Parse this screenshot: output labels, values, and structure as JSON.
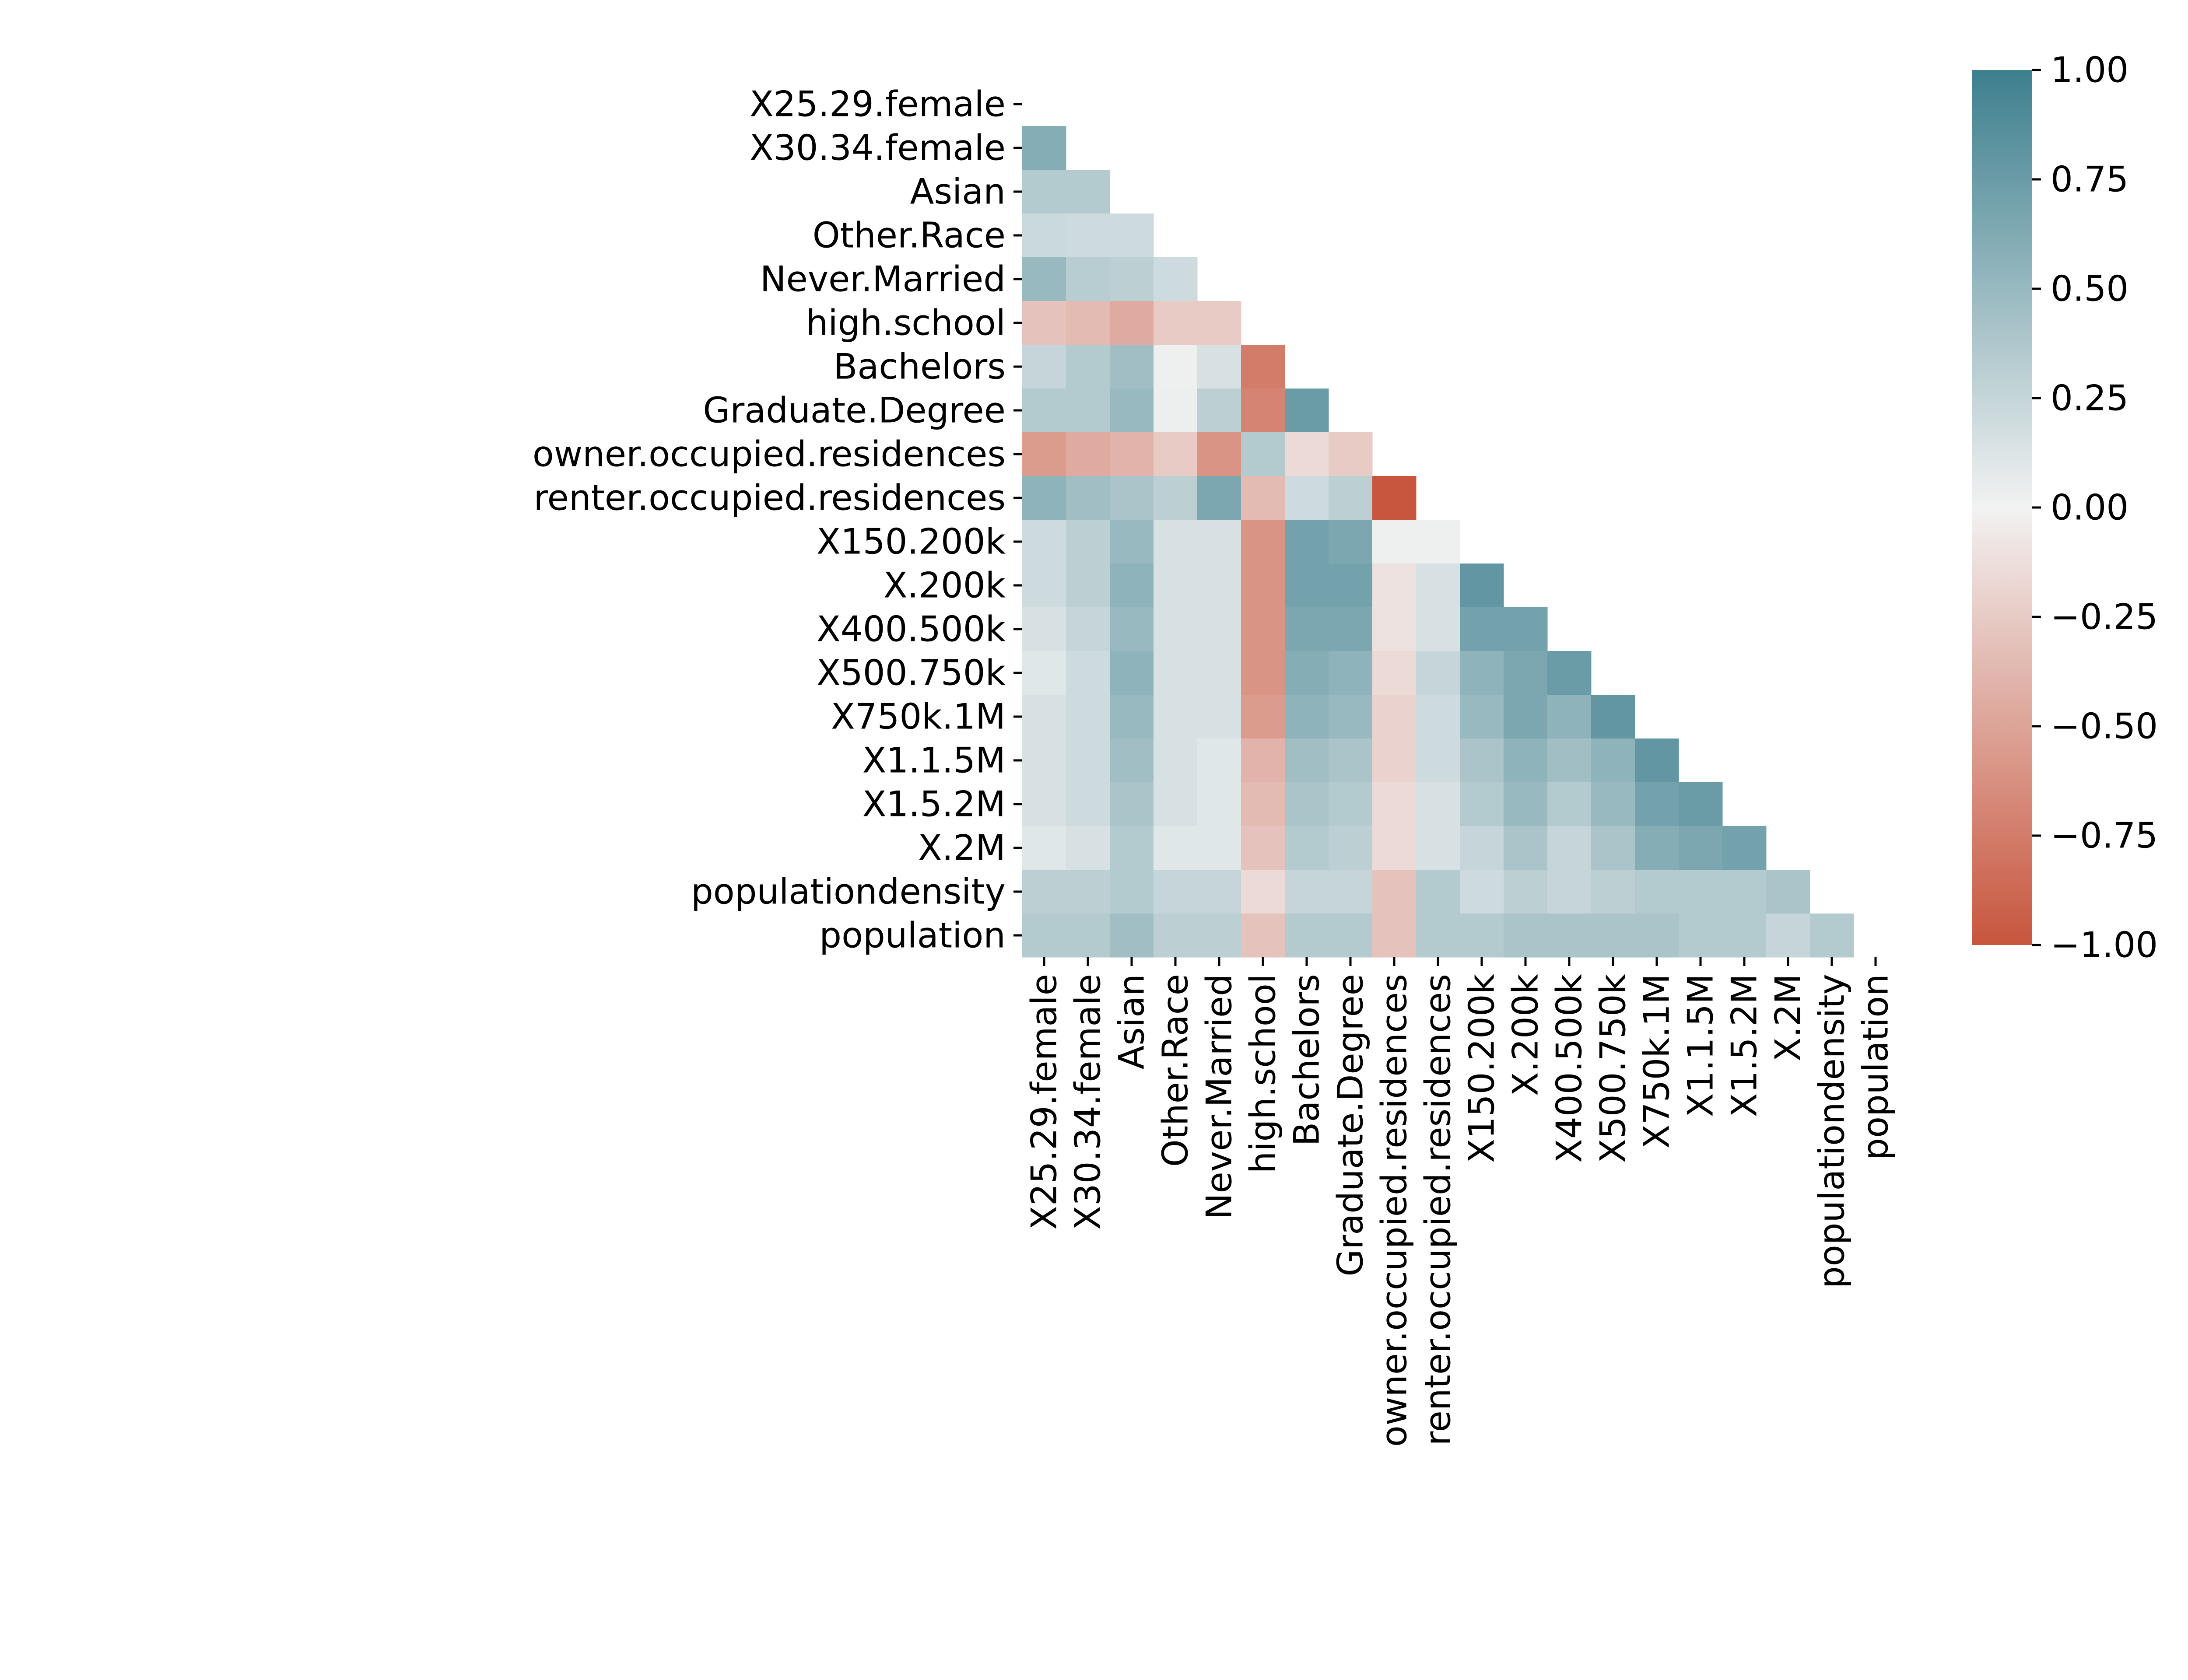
{
  "chart_data": {
    "type": "heatmap",
    "title": "",
    "xlabel": "",
    "ylabel": "",
    "mask": "upper-triangle",
    "row_labels": [
      "X25.29.female",
      "X30.34.female",
      "Asian",
      "Other.Race",
      "Never.Married",
      "high.school",
      "Bachelors",
      "Graduate.Degree",
      "owner.occupied.residences",
      "renter.occupied.residences",
      "X150.200k",
      "X.200k",
      "X400.500k",
      "X500.750k",
      "X750k.1M",
      "X1.1.5M",
      "X1.5.2M",
      "X.2M",
      "populationdensity",
      "population"
    ],
    "col_labels": [
      "X25.29.female",
      "X30.34.female",
      "Asian",
      "Other.Race",
      "Never.Married",
      "high.school",
      "Bachelors",
      "Graduate.Degree",
      "owner.occupied.residences",
      "renter.occupied.residences",
      "X150.200k",
      "X.200k",
      "X400.500k",
      "X500.750k",
      "X750k.1M",
      "X1.1.5M",
      "X1.5.2M",
      "X.2M",
      "populationdensity",
      "population"
    ],
    "values": [
      [],
      [
        0.6
      ],
      [
        0.35,
        0.35
      ],
      [
        0.22,
        0.2,
        0.2
      ],
      [
        0.5,
        0.32,
        0.3,
        0.2
      ],
      [
        -0.3,
        -0.35,
        -0.45,
        -0.25,
        -0.25
      ],
      [
        0.25,
        0.35,
        0.45,
        0.02,
        0.15,
        -0.75
      ],
      [
        0.35,
        0.35,
        0.5,
        0.03,
        0.3,
        -0.7,
        0.75
      ],
      [
        -0.55,
        -0.45,
        -0.4,
        -0.25,
        -0.6,
        0.35,
        -0.15,
        -0.25
      ],
      [
        0.55,
        0.45,
        0.4,
        0.3,
        0.65,
        -0.35,
        0.2,
        0.3,
        -1.0
      ],
      [
        0.2,
        0.3,
        0.5,
        0.15,
        0.15,
        -0.6,
        0.7,
        0.65,
        0.02,
        0.02
      ],
      [
        0.2,
        0.3,
        0.55,
        0.15,
        0.15,
        -0.6,
        0.7,
        0.7,
        -0.1,
        0.15,
        0.8
      ],
      [
        0.15,
        0.25,
        0.5,
        0.15,
        0.15,
        -0.6,
        0.65,
        0.65,
        -0.1,
        0.15,
        0.7,
        0.7
      ],
      [
        0.1,
        0.2,
        0.55,
        0.15,
        0.15,
        -0.6,
        0.6,
        0.55,
        -0.15,
        0.25,
        0.55,
        0.65,
        0.75
      ],
      [
        0.15,
        0.2,
        0.5,
        0.15,
        0.15,
        -0.55,
        0.55,
        0.5,
        -0.2,
        0.2,
        0.5,
        0.65,
        0.55,
        0.8
      ],
      [
        0.15,
        0.2,
        0.45,
        0.15,
        0.1,
        -0.4,
        0.45,
        0.4,
        -0.2,
        0.2,
        0.4,
        0.55,
        0.45,
        0.55,
        0.8
      ],
      [
        0.15,
        0.2,
        0.4,
        0.15,
        0.1,
        -0.35,
        0.4,
        0.35,
        -0.15,
        0.15,
        0.35,
        0.5,
        0.35,
        0.5,
        0.7,
        0.75
      ],
      [
        0.1,
        0.15,
        0.35,
        0.1,
        0.1,
        -0.3,
        0.35,
        0.3,
        -0.15,
        0.15,
        0.25,
        0.4,
        0.25,
        0.4,
        0.6,
        0.65,
        0.7
      ],
      [
        0.3,
        0.3,
        0.35,
        0.25,
        0.25,
        -0.15,
        0.25,
        0.25,
        -0.3,
        0.35,
        0.2,
        0.3,
        0.25,
        0.3,
        0.35,
        0.35,
        0.35,
        0.4
      ],
      [
        0.35,
        0.35,
        0.45,
        0.3,
        0.3,
        -0.3,
        0.35,
        0.35,
        -0.3,
        0.35,
        0.35,
        0.4,
        0.4,
        0.4,
        0.4,
        0.35,
        0.35,
        0.25,
        0.35
      ]
    ],
    "colorbar": {
      "min": -1.0,
      "max": 1.0,
      "ticks": [
        "1.00",
        "0.75",
        "0.50",
        "0.25",
        "0.00",
        "−0.25",
        "−0.50",
        "−0.75",
        "−1.00"
      ],
      "tick_values": [
        1.0,
        0.75,
        0.5,
        0.25,
        0.0,
        -0.25,
        -0.5,
        -0.75,
        -1.0
      ],
      "colors": {
        "negative": "#c8553d",
        "center": "#f2f2f2",
        "positive": "#3d7f8e"
      }
    }
  }
}
